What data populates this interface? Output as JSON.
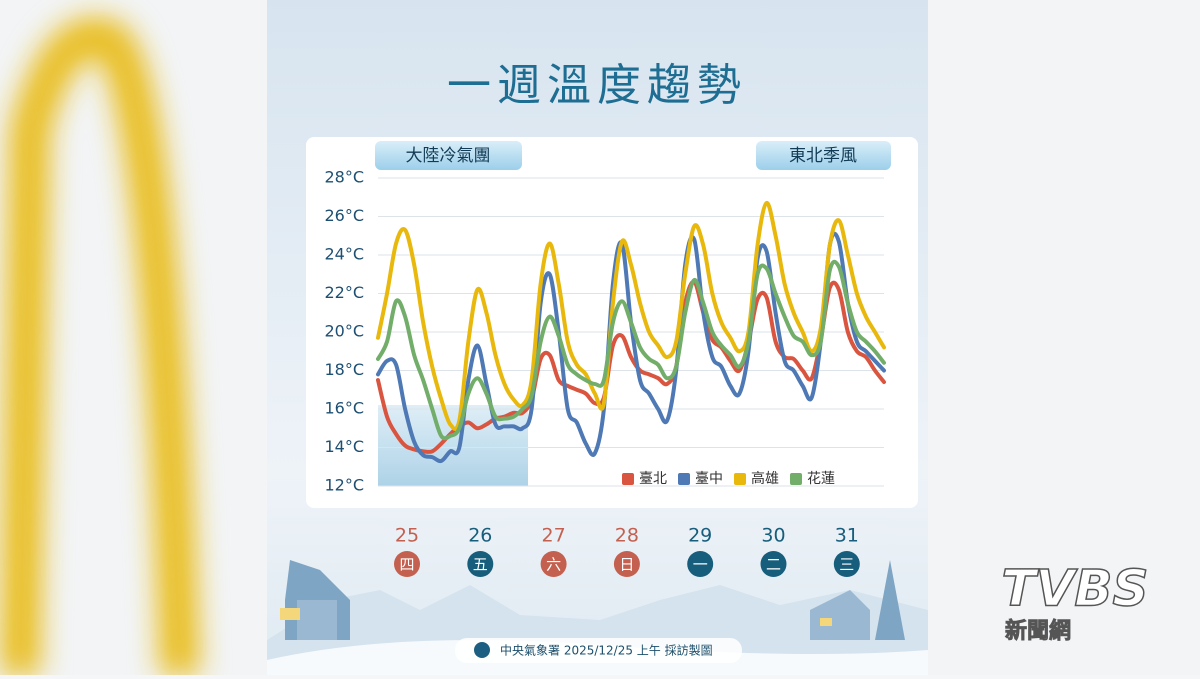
{
  "chart_data": {
    "type": "line",
    "title": "一週溫度趨勢",
    "x": [
      0,
      3,
      6,
      9,
      12,
      15,
      18,
      21,
      24,
      27,
      30,
      33,
      36,
      39,
      42,
      45,
      48,
      51,
      54,
      57,
      60,
      63,
      66,
      69,
      72,
      75,
      78,
      81,
      84,
      87,
      90,
      93,
      96,
      99,
      102,
      105,
      108,
      111,
      114,
      117,
      120,
      123,
      126,
      129,
      132,
      135,
      138,
      141,
      144,
      147,
      150,
      153,
      156,
      159,
      162,
      165,
      168
    ],
    "xlim": [
      0,
      168
    ],
    "ylim": [
      12,
      28
    ],
    "yticks": [
      {
        "value": 12,
        "label": "12°C"
      },
      {
        "value": 14,
        "label": "14°C"
      },
      {
        "value": 16,
        "label": "16°C"
      },
      {
        "value": 18,
        "label": "18°C"
      },
      {
        "value": 20,
        "label": "20°C"
      },
      {
        "value": 22,
        "label": "22°C"
      },
      {
        "value": 24,
        "label": "24°C"
      },
      {
        "value": 26,
        "label": "26°C"
      },
      {
        "value": 28,
        "label": "28°C"
      }
    ],
    "grid": true,
    "legend": "bottom-right",
    "series": [
      {
        "name": "臺北",
        "color": "#d9553f",
        "values": [
          17.5,
          15.6,
          14.7,
          14.1,
          13.9,
          13.8,
          13.8,
          14.2,
          14.7,
          15.1,
          15.3,
          15,
          15.2,
          15.5,
          15.6,
          15.8,
          15.8,
          16.5,
          18.6,
          18.8,
          17.5,
          17.2,
          17,
          16.8,
          16.3,
          16.6,
          19.3,
          19.8,
          18.7,
          18,
          17.8,
          17.6,
          17.3,
          18.2,
          21.5,
          22.6,
          21,
          19.6,
          19.2,
          18.5,
          18,
          19.5,
          21.7,
          21.8,
          19.5,
          18.7,
          18.6,
          18,
          17.6,
          19.6,
          22.3,
          22.2,
          20,
          19,
          18.7,
          18,
          17.4
        ]
      },
      {
        "name": "臺中",
        "color": "#4e79b5",
        "values": [
          17.8,
          18.5,
          18.3,
          16,
          14.3,
          13.6,
          13.5,
          13.3,
          13.8,
          14,
          17.5,
          19.3,
          17.3,
          15.2,
          15.1,
          15.1,
          15,
          16,
          21.5,
          23,
          20,
          16,
          15.3,
          14.2,
          13.7,
          16,
          22.5,
          24.6,
          20.5,
          17.5,
          16.8,
          16,
          15.4,
          18,
          23.5,
          24.8,
          21,
          18.7,
          18.2,
          17.2,
          16.8,
          19,
          23.8,
          24.2,
          21,
          18.5,
          18,
          17.2,
          16.6,
          19.5,
          24.5,
          24.7,
          21.5,
          19.5,
          19,
          18.5,
          18
        ]
      },
      {
        "name": "高雄",
        "color": "#e8b80c",
        "values": [
          19.7,
          22,
          24.6,
          25.3,
          23.5,
          20.5,
          18.2,
          16.5,
          15.2,
          15.4,
          19.5,
          22.2,
          21,
          18.8,
          17.3,
          16.5,
          16.2,
          17.5,
          22.5,
          24.6,
          22.5,
          19.5,
          18.3,
          17.8,
          16.8,
          16.3,
          21.5,
          24.7,
          23.5,
          21.5,
          20,
          19.3,
          18.7,
          19.5,
          23,
          25.5,
          24.5,
          22,
          20.5,
          19.7,
          19,
          20,
          24.5,
          26.7,
          25,
          22.5,
          21,
          20,
          19,
          20.2,
          24.5,
          25.8,
          24,
          22,
          20.8,
          20,
          19.2
        ]
      },
      {
        "name": "花蓮",
        "color": "#72ad6a",
        "values": [
          18.6,
          19.5,
          21.6,
          20.8,
          18.8,
          17.5,
          16,
          14.6,
          14.6,
          15,
          16.8,
          17.6,
          16.8,
          15.6,
          15.5,
          15.6,
          16,
          16.7,
          19.5,
          20.8,
          19.8,
          18.3,
          17.8,
          17.5,
          17.3,
          17.5,
          20.5,
          21.6,
          20.5,
          19.2,
          18.6,
          18.3,
          17.6,
          18.2,
          21,
          22.7,
          21.5,
          20,
          19.3,
          18.8,
          18.2,
          19.5,
          23,
          23.3,
          22,
          20.8,
          19.8,
          19.5,
          18.8,
          19.5,
          23.2,
          23.4,
          21.5,
          20,
          19.5,
          19,
          18.4
        ]
      }
    ],
    "annotations": [
      "大陸冷氣團",
      "東北季風"
    ],
    "days": [
      {
        "date": "25",
        "weekday": "四",
        "color": "#c4604f"
      },
      {
        "date": "26",
        "weekday": "五",
        "color": "#175d7c"
      },
      {
        "date": "27",
        "weekday": "六",
        "color": "#c4604f"
      },
      {
        "date": "28",
        "weekday": "日",
        "color": "#c4604f"
      },
      {
        "date": "29",
        "weekday": "一",
        "color": "#175d7c"
      },
      {
        "date": "30",
        "weekday": "二",
        "color": "#175d7c"
      },
      {
        "date": "31",
        "weekday": "三",
        "color": "#175d7c"
      }
    ]
  },
  "footer": "中央氣象署 2025/12/25 上午 採訪製圖",
  "logo": {
    "brand": "TVBS",
    "sub": "新聞網"
  }
}
